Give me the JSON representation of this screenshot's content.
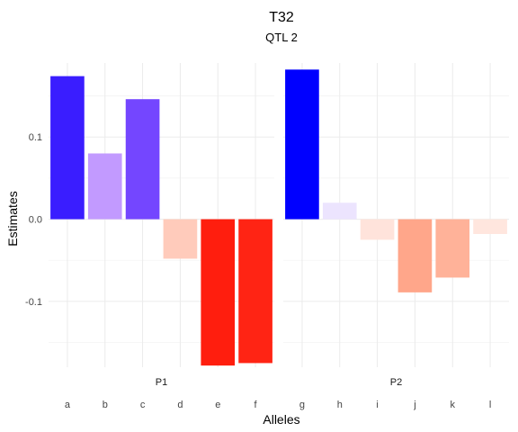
{
  "chart_data": {
    "type": "bar",
    "title": "T32",
    "subtitle": "QTL 2",
    "xlabel": "Alleles",
    "ylabel": "Estimates",
    "ylim": [
      -0.18,
      0.19
    ],
    "yticks": [
      0.1,
      0.0,
      -0.1
    ],
    "ytick_labels": [
      "0.1",
      "0.0",
      "-0.1"
    ],
    "grid": true,
    "facets": [
      {
        "name": "P1",
        "categories": [
          "a",
          "b",
          "c",
          "d",
          "e",
          "f"
        ],
        "values": [
          0.174,
          0.08,
          0.146,
          -0.048,
          -0.178,
          -0.175
        ],
        "colors": [
          "#3a1dff",
          "#c29aff",
          "#7446ff",
          "#ffcbbb",
          "#ff1e0e",
          "#ff2414"
        ]
      },
      {
        "name": "P2",
        "categories": [
          "g",
          "h",
          "i",
          "j",
          "k",
          "l"
        ],
        "values": [
          0.182,
          0.02,
          -0.025,
          -0.089,
          -0.071,
          -0.018
        ],
        "colors": [
          "#0000ff",
          "#ece4fe",
          "#ffe3db",
          "#ffa68a",
          "#ffb299",
          "#ffe6de"
        ]
      }
    ]
  }
}
